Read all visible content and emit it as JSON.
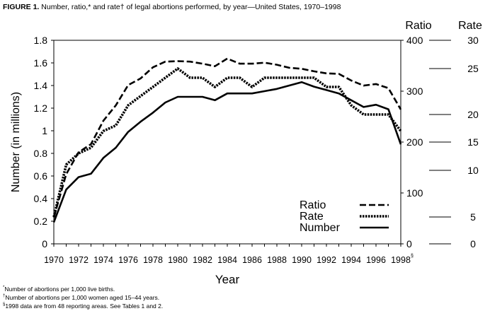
{
  "title": {
    "label": "FIGURE 1.",
    "text": "Number, ratio,* and rate† of legal abortions performed, by year—United States, 1970–1998"
  },
  "footnotes": [
    {
      "mark": "*",
      "text": "Number of abortions per 1,000 live births."
    },
    {
      "mark": "†",
      "text": "Number of abortions per 1,000 women aged 15–44 years."
    },
    {
      "mark": "§",
      "text": "1998 data are from 48 reporting areas. See Tables 1 and 2."
    }
  ],
  "chart_data": {
    "type": "line",
    "xlabel": "Year",
    "ylabel": "Number (in millions)",
    "right_axis_titles": {
      "ratio": "Ratio",
      "rate": "Rate"
    },
    "x": [
      1970,
      1971,
      1972,
      1973,
      1974,
      1975,
      1976,
      1977,
      1978,
      1979,
      1980,
      1981,
      1982,
      1983,
      1984,
      1985,
      1986,
      1987,
      1988,
      1989,
      1990,
      1991,
      1992,
      1993,
      1994,
      1995,
      1996,
      1997,
      1998
    ],
    "x_tick_labels": [
      "1970",
      "1972",
      "1974",
      "1976",
      "1978",
      "1980",
      "1982",
      "1984",
      "1986",
      "1988",
      "1990",
      "1992",
      "1994",
      "1996",
      "1998"
    ],
    "x_last_tick_mark": "§",
    "xlim": [
      1970,
      1998
    ],
    "y_left": {
      "ylim": [
        0,
        1.8
      ],
      "ticks": [
        "0",
        "0.2",
        "0.4",
        "0.6",
        "0.8",
        "1",
        "1.2",
        "1.4",
        "1.6",
        "1.8"
      ]
    },
    "y_ratio": {
      "ylim": [
        0,
        400
      ],
      "ticks": [
        "0",
        "100",
        "200",
        "300",
        "400"
      ]
    },
    "y_rate": {
      "ylim": [
        0,
        30
      ],
      "ticks": [
        "0",
        "5",
        "10",
        "15",
        "20",
        "25",
        "30"
      ]
    },
    "grid": false,
    "legend_position": "bottom-right",
    "series": [
      {
        "name": "Ratio",
        "axis": "ratio",
        "style": "dashed",
        "values": [
          52,
          137,
          180,
          196,
          242,
          272,
          312,
          325,
          347,
          358,
          359,
          358,
          354,
          349,
          364,
          354,
          354,
          356,
          352,
          346,
          344,
          339,
          335,
          334,
          321,
          311,
          314,
          306,
          264
        ]
      },
      {
        "name": "Rate",
        "axis": "rate",
        "style": "dotted",
        "values": [
          5,
          11,
          13,
          14,
          17,
          18,
          21,
          22,
          23,
          24,
          25,
          24,
          24,
          23,
          24,
          24,
          23,
          24,
          24,
          24,
          24,
          24,
          23,
          23,
          21,
          20,
          20,
          20,
          17
        ]
      },
      {
        "name": "Number",
        "axis": "left",
        "style": "solid",
        "values": [
          0.19,
          0.48,
          0.59,
          0.62,
          0.76,
          0.85,
          0.99,
          1.08,
          1.16,
          1.25,
          1.3,
          1.3,
          1.3,
          1.27,
          1.33,
          1.33,
          1.33,
          1.35,
          1.37,
          1.4,
          1.43,
          1.39,
          1.36,
          1.33,
          1.27,
          1.21,
          1.23,
          1.19,
          0.88
        ]
      }
    ]
  }
}
